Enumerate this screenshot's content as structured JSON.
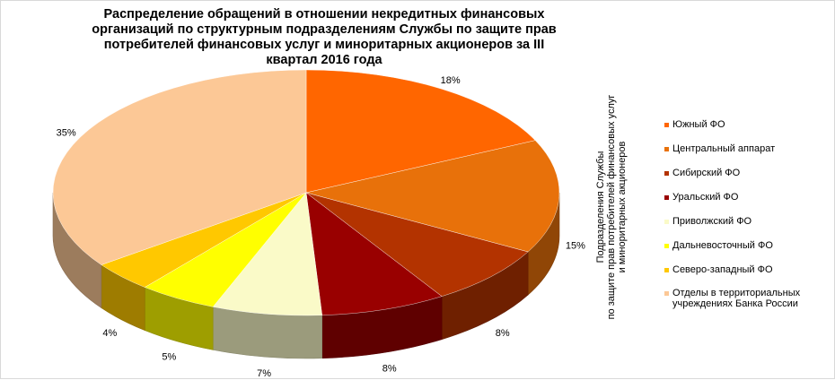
{
  "chart_data": {
    "type": "pie",
    "title": "Распределение обращений в отношении некредитных финансовых организаций по структурным подразделениям Службы по защите прав потребителей финансовых услуг и миноритарных акционеров за III квартал 2016 года",
    "legend_title_lines": [
      "Подразделения Службы",
      "по защите прав потребителей финансовых  услуг",
      "и миноритарных акционеров"
    ],
    "legend_position": "right",
    "slices": [
      {
        "name": "Южный ФО",
        "value": 18,
        "label": "18%",
        "color": "#FF6600"
      },
      {
        "name": "Центральный аппарат",
        "value": 15,
        "label": "15%",
        "color": "#E8710A"
      },
      {
        "name": "Сибирский ФО",
        "value": 8,
        "label": "8%",
        "color": "#B33300"
      },
      {
        "name": "Уральский ФО",
        "value": 8,
        "label": "8%",
        "color": "#990000"
      },
      {
        "name": "Приволжский ФО",
        "value": 7,
        "label": "7%",
        "color": "#FAFAC8"
      },
      {
        "name": "Дальневосточный ФО",
        "value": 5,
        "label": "5%",
        "color": "#FFFF00"
      },
      {
        "name": "Северо-западный ФО",
        "value": 4,
        "label": "4%",
        "color": "#FFC800"
      },
      {
        "name": "Отделы в территориальных учреждениях Банка России",
        "value": 35,
        "label": "35%",
        "color": "#FCC896"
      }
    ]
  }
}
